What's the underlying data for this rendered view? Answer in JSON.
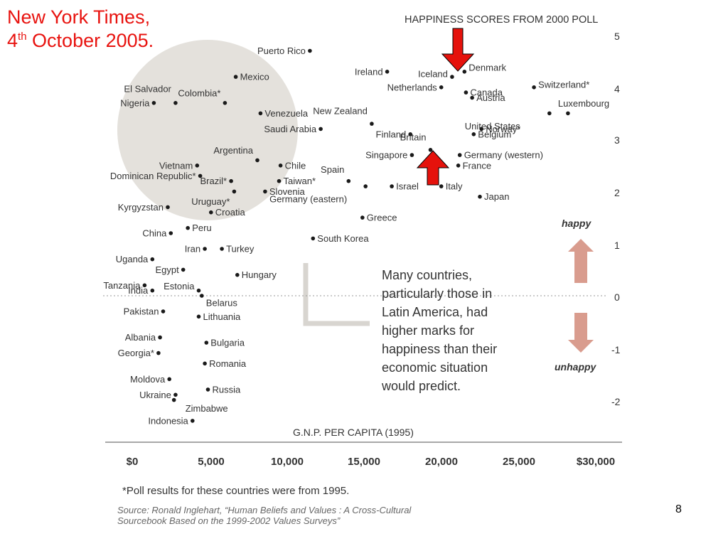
{
  "slide": {
    "title_line1": "New York Times,",
    "title_line2_day": "4",
    "title_line2_sup": "th",
    "title_line2_rest": " October 2005.",
    "page_number": "8"
  },
  "colors": {
    "title_red": "#e8130f",
    "arrow_red": "#e5120c",
    "circle_fill": "#e4e1dc",
    "happy_arrow": "#d99c8e",
    "chart_text": "#333333"
  },
  "chart_data": {
    "type": "scatter",
    "title": "HAPPINESS SCORES FROM 2000 POLL",
    "xlabel": "G.N.P. PER CAPITA (1995)",
    "ylabel": "",
    "xlim": [
      0,
      30000
    ],
    "ylim": [
      -2,
      5
    ],
    "x_tick_labels": [
      "$0",
      "5,000",
      "10,000",
      "15,000",
      "20,000",
      "25,000",
      "$30,000"
    ],
    "y_tick_labels": [
      "5",
      "4",
      "3",
      "2",
      "1",
      "0",
      "-1",
      "-2"
    ],
    "happy_label": "happy",
    "unhappy_label": "unhappy",
    "annotation": "Many countries, particularly those in Latin America, had higher marks for happiness than their economic situation would predict.",
    "footnote": "*Poll results for these countries were from 1995.",
    "source_line1": "Source: Ronald Inglehart, “Human Beliefs and Values : A Cross-Cultural",
    "source_line2": "Sourcebook Based on the 1999-2002 Values Surveys”",
    "grid": false,
    "points": [
      {
        "label": "Puerto Rico",
        "x": 11500,
        "y": 4.7
      },
      {
        "label": "Mexico",
        "x": 6700,
        "y": 4.2
      },
      {
        "label": "El Salvador",
        "x": 2800,
        "y": 3.7
      },
      {
        "label": "Colombia*",
        "x": 6000,
        "y": 3.7
      },
      {
        "label": "Nigeria",
        "x": 1400,
        "y": 3.7
      },
      {
        "label": "Venezuela",
        "x": 8300,
        "y": 3.5
      },
      {
        "label": "Saudi Arabia",
        "x": 12200,
        "y": 3.2
      },
      {
        "label": "Argentina",
        "x": 8100,
        "y": 2.6
      },
      {
        "label": "Chile",
        "x": 9600,
        "y": 2.5
      },
      {
        "label": "Vietnam",
        "x": 4200,
        "y": 2.5
      },
      {
        "label": "Dominican Republic*",
        "x": 4400,
        "y": 2.3
      },
      {
        "label": "Brazil*",
        "x": 6400,
        "y": 2.2
      },
      {
        "label": "Taiwan*",
        "x": 9500,
        "y": 2.2
      },
      {
        "label": "Uruguay*",
        "x": 6600,
        "y": 2.0
      },
      {
        "label": "Slovenia",
        "x": 8600,
        "y": 2.0
      },
      {
        "label": "Kyrgyzstan",
        "x": 2300,
        "y": 1.7
      },
      {
        "label": "Croatia",
        "x": 5100,
        "y": 1.6
      },
      {
        "label": "China",
        "x": 2500,
        "y": 1.2
      },
      {
        "label": "Peru",
        "x": 3600,
        "y": 1.3
      },
      {
        "label": "Iran",
        "x": 4700,
        "y": 0.9
      },
      {
        "label": "Turkey",
        "x": 5800,
        "y": 0.9
      },
      {
        "label": "Uganda",
        "x": 1300,
        "y": 0.7
      },
      {
        "label": "Egypt",
        "x": 3300,
        "y": 0.5
      },
      {
        "label": "Hungary",
        "x": 6800,
        "y": 0.4
      },
      {
        "label": "Tanzania",
        "x": 800,
        "y": 0.2
      },
      {
        "label": "India",
        "x": 1300,
        "y": 0.1
      },
      {
        "label": "Estonia",
        "x": 4300,
        "y": 0.1
      },
      {
        "label": "Belarus",
        "x": 4500,
        "y": 0.0
      },
      {
        "label": "Pakistan",
        "x": 2000,
        "y": -0.3
      },
      {
        "label": "Lithuania",
        "x": 4300,
        "y": -0.4
      },
      {
        "label": "Albania",
        "x": 1800,
        "y": -0.8
      },
      {
        "label": "Georgia*",
        "x": 1700,
        "y": -1.1
      },
      {
        "label": "Bulgaria",
        "x": 4800,
        "y": -0.9
      },
      {
        "label": "Romania",
        "x": 4700,
        "y": -1.3
      },
      {
        "label": "Moldova",
        "x": 2400,
        "y": -1.6
      },
      {
        "label": "Russia",
        "x": 4900,
        "y": -1.8
      },
      {
        "label": "Ukraine",
        "x": 2800,
        "y": -1.9
      },
      {
        "label": "Zimbabwe",
        "x": 2700,
        "y": -2.0
      },
      {
        "label": "Indonesia",
        "x": 3900,
        "y": -2.4
      },
      {
        "label": "Ireland",
        "x": 16500,
        "y": 4.3
      },
      {
        "label": "Iceland",
        "x": 20700,
        "y": 4.2
      },
      {
        "label": "Denmark",
        "x": 21500,
        "y": 4.3
      },
      {
        "label": "Netherlands",
        "x": 20000,
        "y": 4.0
      },
      {
        "label": "Canada",
        "x": 21600,
        "y": 3.9
      },
      {
        "label": "Austria",
        "x": 22000,
        "y": 3.8
      },
      {
        "label": "New Zealand",
        "x": 15500,
        "y": 3.3
      },
      {
        "label": "Switzerland*",
        "x": 26000,
        "y": 4.0
      },
      {
        "label": "Luxembourg",
        "x": 28200,
        "y": 3.5
      },
      {
        "label": "United States",
        "x": 27000,
        "y": 3.5
      },
      {
        "label": "Finland",
        "x": 18000,
        "y": 3.1
      },
      {
        "label": "Britain",
        "x": 19300,
        "y": 2.8
      },
      {
        "label": "Norway*",
        "x": 22600,
        "y": 3.2
      },
      {
        "label": "Belgium",
        "x": 22100,
        "y": 3.1
      },
      {
        "label": "Singapore",
        "x": 18100,
        "y": 2.7
      },
      {
        "label": "Germany (western)",
        "x": 21200,
        "y": 2.7
      },
      {
        "label": "France",
        "x": 21100,
        "y": 2.5
      },
      {
        "label": "Spain",
        "x": 14000,
        "y": 2.2
      },
      {
        "label": "Germany (eastern)",
        "x": 15100,
        "y": 2.1
      },
      {
        "label": "Israel",
        "x": 16800,
        "y": 2.1
      },
      {
        "label": "Italy",
        "x": 20000,
        "y": 2.1
      },
      {
        "label": "Japan",
        "x": 22500,
        "y": 1.9
      },
      {
        "label": "Greece",
        "x": 14900,
        "y": 1.5
      },
      {
        "label": "South Korea",
        "x": 11700,
        "y": 1.1
      }
    ]
  }
}
